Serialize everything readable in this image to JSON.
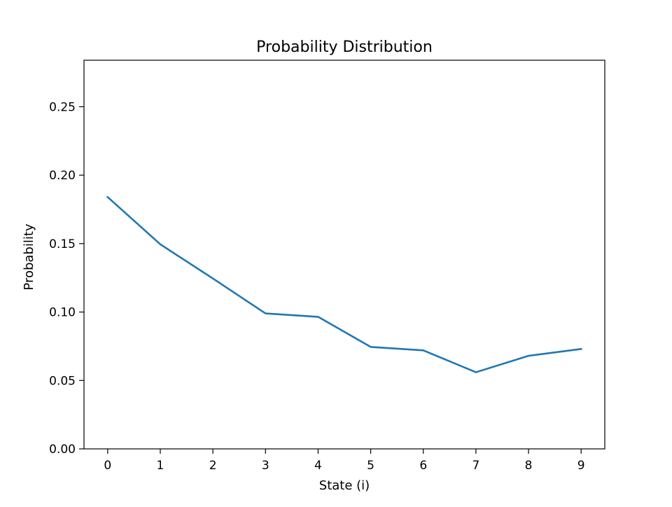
{
  "chart_data": {
    "type": "line",
    "title": "Probability Distribution",
    "xlabel": "State (i)",
    "ylabel": "Probability",
    "x": [
      0,
      1,
      2,
      3,
      4,
      5,
      6,
      7,
      8,
      9
    ],
    "series": [
      {
        "values": [
          0.184,
          0.1495,
          0.1245,
          0.099,
          0.0965,
          0.0745,
          0.072,
          0.056,
          0.068,
          0.073
        ],
        "color": "#1f77b4"
      }
    ],
    "xticks": [
      "0",
      "1",
      "2",
      "3",
      "4",
      "5",
      "6",
      "7",
      "8",
      "9"
    ],
    "yticks": [
      "0.00",
      "0.05",
      "0.10",
      "0.15",
      "0.20",
      "0.25"
    ],
    "ytick_values": [
      0,
      0.05,
      0.1,
      0.15,
      0.2,
      0.25
    ],
    "xlim": [
      -0.45,
      9.45
    ],
    "ylim": [
      0,
      0.284
    ],
    "grid": false,
    "legend": "none"
  }
}
